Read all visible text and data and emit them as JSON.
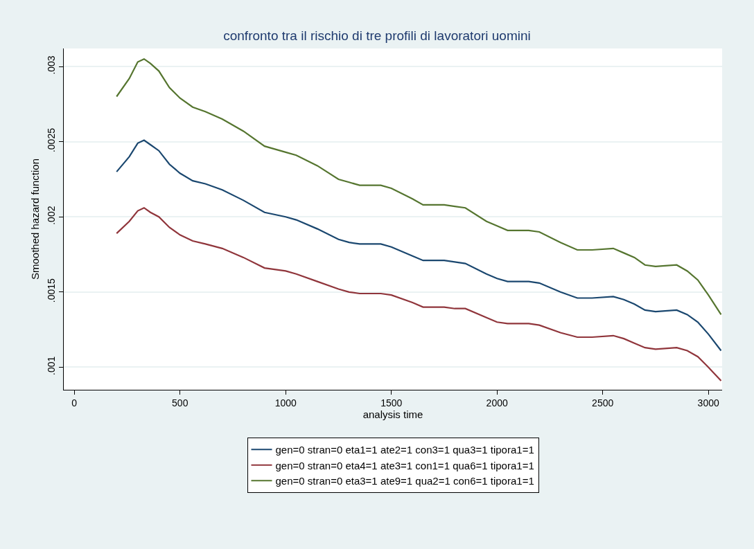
{
  "chart_data": {
    "type": "line",
    "title": "confronto tra il rischio di tre profili di lavoratori uomini",
    "xlabel": "analysis time",
    "ylabel": "Smoothed hazard function",
    "x": [
      200,
      260,
      300,
      330,
      360,
      400,
      450,
      500,
      560,
      620,
      700,
      800,
      900,
      1000,
      1050,
      1150,
      1250,
      1300,
      1350,
      1450,
      1500,
      1600,
      1650,
      1750,
      1800,
      1850,
      1950,
      2000,
      2050,
      2150,
      2200,
      2300,
      2380,
      2450,
      2550,
      2600,
      2650,
      2700,
      2750,
      2850,
      2900,
      2950,
      3000,
      3060
    ],
    "series": [
      {
        "name": "gen=0 stran=0 eta1=1 ate2=1 con3=1 qua3=1 tipora1=1",
        "color": "#1a476f",
        "values": [
          0.0023,
          0.0024,
          0.00249,
          0.00251,
          0.00248,
          0.00244,
          0.00235,
          0.00229,
          0.00224,
          0.00222,
          0.00218,
          0.00211,
          0.00203,
          0.002,
          0.00198,
          0.00192,
          0.00185,
          0.00183,
          0.00182,
          0.00182,
          0.0018,
          0.00174,
          0.00171,
          0.00171,
          0.0017,
          0.00169,
          0.00162,
          0.00159,
          0.00157,
          0.00157,
          0.00156,
          0.0015,
          0.00146,
          0.00146,
          0.00147,
          0.00145,
          0.00142,
          0.00138,
          0.00137,
          0.00138,
          0.00135,
          0.0013,
          0.00122,
          0.00111
        ]
      },
      {
        "name": "gen=0 stran=0 eta4=1 ate3=1 con1=1 qua6=1 tipora1=1",
        "color": "#90353b",
        "values": [
          0.00189,
          0.00197,
          0.00204,
          0.00206,
          0.00203,
          0.002,
          0.00193,
          0.00188,
          0.00184,
          0.00182,
          0.00179,
          0.00173,
          0.00166,
          0.00164,
          0.00162,
          0.00157,
          0.00152,
          0.0015,
          0.00149,
          0.00149,
          0.00148,
          0.00143,
          0.0014,
          0.0014,
          0.00139,
          0.00139,
          0.00133,
          0.0013,
          0.00129,
          0.00129,
          0.00128,
          0.00123,
          0.0012,
          0.0012,
          0.00121,
          0.00119,
          0.00116,
          0.00113,
          0.00112,
          0.00113,
          0.00111,
          0.00107,
          0.001,
          0.00091
        ]
      },
      {
        "name": "gen=0 stran=0 eta3=1 ate9=1 qua2=1 con6=1 tipora1=1",
        "color": "#55752f",
        "values": [
          0.0028,
          0.00292,
          0.00303,
          0.00305,
          0.00302,
          0.00297,
          0.00286,
          0.00279,
          0.00273,
          0.0027,
          0.00265,
          0.00257,
          0.00247,
          0.00243,
          0.00241,
          0.00234,
          0.00225,
          0.00223,
          0.00221,
          0.00221,
          0.00219,
          0.00212,
          0.00208,
          0.00208,
          0.00207,
          0.00206,
          0.00197,
          0.00194,
          0.00191,
          0.00191,
          0.0019,
          0.00183,
          0.00178,
          0.00178,
          0.00179,
          0.00176,
          0.00173,
          0.00168,
          0.00167,
          0.00168,
          0.00164,
          0.00158,
          0.00148,
          0.00135
        ]
      }
    ],
    "xlim": [
      -50,
      3065
    ],
    "xticks": [
      0,
      500,
      1000,
      1500,
      2000,
      2500,
      3000
    ],
    "ylim": [
      0.00085,
      0.00312
    ],
    "yticks": [
      {
        "value": 0.001,
        "label": ".001"
      },
      {
        "value": 0.0015,
        "label": ".0015"
      },
      {
        "value": 0.002,
        "label": ".002"
      },
      {
        "value": 0.0025,
        "label": ".0025"
      },
      {
        "value": 0.003,
        "label": ".003"
      }
    ],
    "grid": "y",
    "legend": "bottom",
    "marker": "none",
    "line_style": "solid"
  }
}
